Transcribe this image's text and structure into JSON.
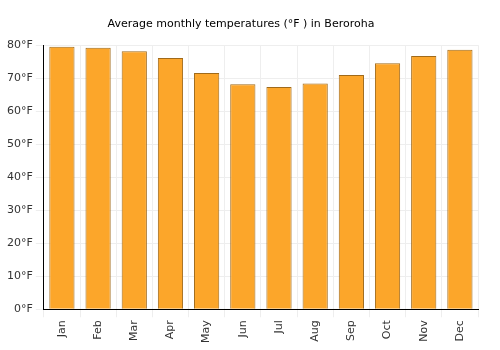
{
  "chart_data": {
    "type": "bar",
    "title": "Average monthly temperatures (°F ) in Beroroha",
    "categories": [
      "Jan",
      "Feb",
      "Mar",
      "Apr",
      "May",
      "Jun",
      "Jul",
      "Aug",
      "Sep",
      "Oct",
      "Nov",
      "Dec"
    ],
    "values": [
      79.5,
      79.2,
      78.2,
      76.1,
      71.6,
      68.2,
      67.3,
      68.4,
      71.0,
      74.5,
      76.7,
      78.6
    ],
    "color": "#fca62a",
    "ylim": [
      0,
      80
    ],
    "yticks": [
      {
        "value": 0,
        "label": "0°F"
      },
      {
        "value": 10,
        "label": "10°F"
      },
      {
        "value": 20,
        "label": "20°F"
      },
      {
        "value": 30,
        "label": "30°F"
      },
      {
        "value": 40,
        "label": "40°F"
      },
      {
        "value": 50,
        "label": "50°F"
      },
      {
        "value": 60,
        "label": "60°F"
      },
      {
        "value": 70,
        "label": "70°F"
      },
      {
        "value": 80,
        "label": "80°F"
      }
    ],
    "grid": true
  }
}
